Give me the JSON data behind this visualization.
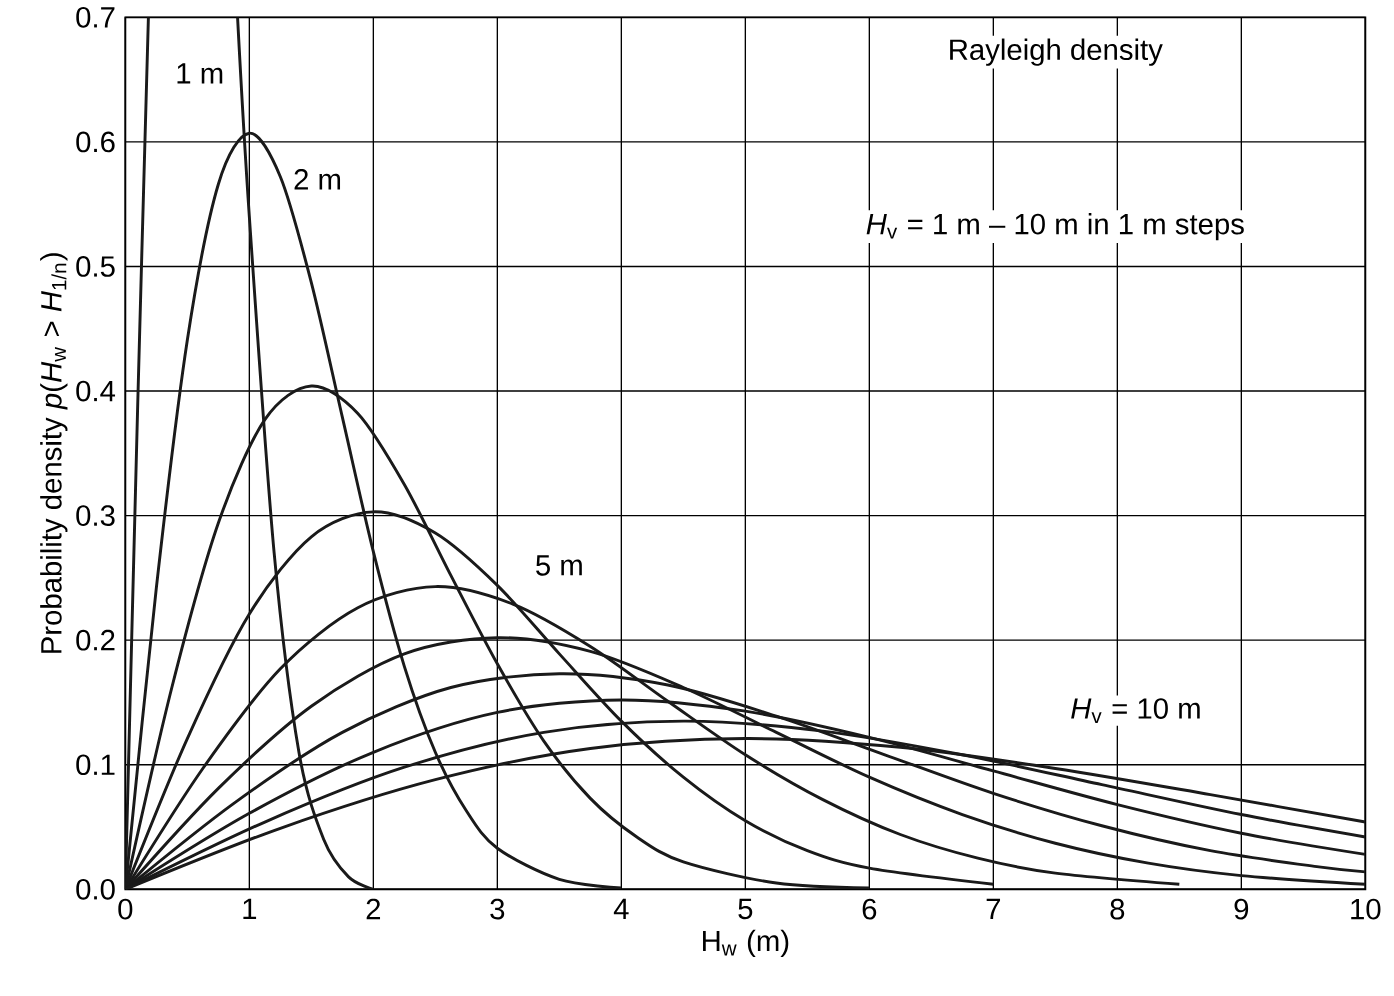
{
  "chart_data": {
    "type": "line",
    "xlabel": "H$_{w}$ (m)",
    "ylabel": "Probability density *p*(*H*$_{w}$ > *H*$_{1/n}$)",
    "xlim": [
      0,
      10
    ],
    "ylim": [
      0,
      0.7
    ],
    "xticks": [
      0,
      1,
      2,
      3,
      4,
      5,
      6,
      7,
      8,
      9,
      10
    ],
    "yticks": [
      {
        "value": 0,
        "label": "0.0"
      },
      {
        "value": 0.1,
        "label": "0.1"
      },
      {
        "value": 0.2,
        "label": "0.2"
      },
      {
        "value": 0.3,
        "label": "0.3"
      },
      {
        "value": 0.4,
        "label": "0.4"
      },
      {
        "value": 0.5,
        "label": "0.5"
      },
      {
        "value": 0.6,
        "label": "0.6"
      },
      {
        "value": 0.7,
        "label": "0.7"
      }
    ],
    "grid": true,
    "marker": "none",
    "line_style": "solid",
    "series": [
      {
        "color": "#1a1a1a",
        "x": [
          0,
          0.1,
          0.186,
          0.5,
          0.905,
          1,
          1.2,
          1.4,
          1.6,
          1.8,
          2
        ],
        "values": [
          0,
          0.39,
          0.7,
          null,
          0.7,
          0.54,
          0.27,
          0.11,
          0.04,
          0.01,
          0
        ]
      },
      {
        "color": "#1a1a1a",
        "x": [
          0,
          0.25,
          0.5,
          0.75,
          1,
          1.25,
          1.5,
          1.75,
          2,
          2.25,
          2.5,
          2.75,
          3,
          3.5,
          4
        ],
        "values": [
          0,
          0.242,
          0.441,
          0.566,
          0.607,
          0.572,
          0.487,
          0.379,
          0.271,
          0.179,
          0.11,
          0.063,
          0.033,
          0.008,
          0.001
        ]
      },
      {
        "color": "#1a1a1a",
        "x": [
          0,
          0.375,
          0.75,
          1.125,
          1.5,
          1.875,
          2.25,
          2.625,
          3,
          3.375,
          3.75,
          4.125,
          4.5,
          5.25,
          6
        ],
        "values": [
          0,
          0.162,
          0.294,
          0.377,
          0.404,
          0.382,
          0.325,
          0.252,
          0.181,
          0.119,
          0.073,
          0.042,
          0.022,
          0.005,
          0.001
        ]
      },
      {
        "color": "#1a1a1a",
        "x": [
          0,
          0.5,
          1,
          1.5,
          2,
          2.5,
          3,
          3.5,
          4,
          4.5,
          5,
          5.5,
          6,
          7
        ],
        "values": [
          0,
          0.121,
          0.221,
          0.283,
          0.303,
          0.286,
          0.244,
          0.189,
          0.135,
          0.09,
          0.055,
          0.031,
          0.017,
          0.004
        ]
      },
      {
        "color": "#1a1a1a",
        "x": [
          0,
          0.625,
          1.25,
          1.875,
          2.5,
          3.125,
          3.75,
          4.375,
          5,
          5.625,
          6.25,
          6.875,
          7.5,
          8.5
        ],
        "values": [
          0,
          0.097,
          0.177,
          0.226,
          0.243,
          0.229,
          0.195,
          0.151,
          0.108,
          0.072,
          0.044,
          0.025,
          0.013,
          0.004
        ]
      },
      {
        "color": "#1a1a1a",
        "x": [
          0,
          0.75,
          1.5,
          2.25,
          3,
          3.75,
          4.5,
          5.25,
          6,
          6.75,
          7.5,
          8.25,
          9,
          10
        ],
        "values": [
          0,
          0.081,
          0.147,
          0.189,
          0.202,
          0.191,
          0.162,
          0.126,
          0.09,
          0.06,
          0.037,
          0.021,
          0.011,
          0.004
        ]
      },
      {
        "color": "#1a1a1a",
        "x": [
          0,
          0.875,
          1.75,
          2.625,
          3.5,
          4.375,
          5.25,
          6.125,
          7,
          7.875,
          8.75,
          9.625,
          10
        ],
        "values": [
          0,
          0.069,
          0.126,
          0.162,
          0.173,
          0.164,
          0.139,
          0.108,
          0.077,
          0.051,
          0.031,
          0.018,
          0.014
        ]
      },
      {
        "color": "#1a1a1a",
        "x": [
          0,
          1,
          2,
          3,
          4,
          5,
          6,
          7,
          8,
          9,
          10
        ],
        "values": [
          0,
          0.061,
          0.11,
          0.142,
          0.152,
          0.143,
          0.122,
          0.095,
          0.068,
          0.045,
          0.028
        ]
      },
      {
        "color": "#1a1a1a",
        "x": [
          0,
          1.125,
          2.25,
          3.375,
          4.5,
          5.625,
          6.75,
          7.875,
          9,
          10
        ],
        "values": [
          0,
          0.054,
          0.098,
          0.126,
          0.135,
          0.127,
          0.108,
          0.084,
          0.06,
          0.042
        ]
      },
      {
        "color": "#1a1a1a",
        "x": [
          0,
          1.25,
          2.5,
          3.75,
          5,
          6.25,
          7.5,
          8.75,
          10
        ],
        "values": [
          0,
          0.049,
          0.088,
          0.113,
          0.121,
          0.114,
          0.097,
          0.076,
          0.054
        ]
      }
    ],
    "annotations": [
      {
        "text": "1 m",
        "x": 0.6,
        "y": 0.655
      },
      {
        "text": "2 m",
        "x": 1.55,
        "y": 0.57
      },
      {
        "text": "5 m",
        "x": 3.5,
        "y": 0.26
      },
      "*H*$_{v}$ = 10 m",
      "Rayleigh density",
      "*H*$_{v}$ = 1 m – 10 m in 1 m steps"
    ]
  }
}
